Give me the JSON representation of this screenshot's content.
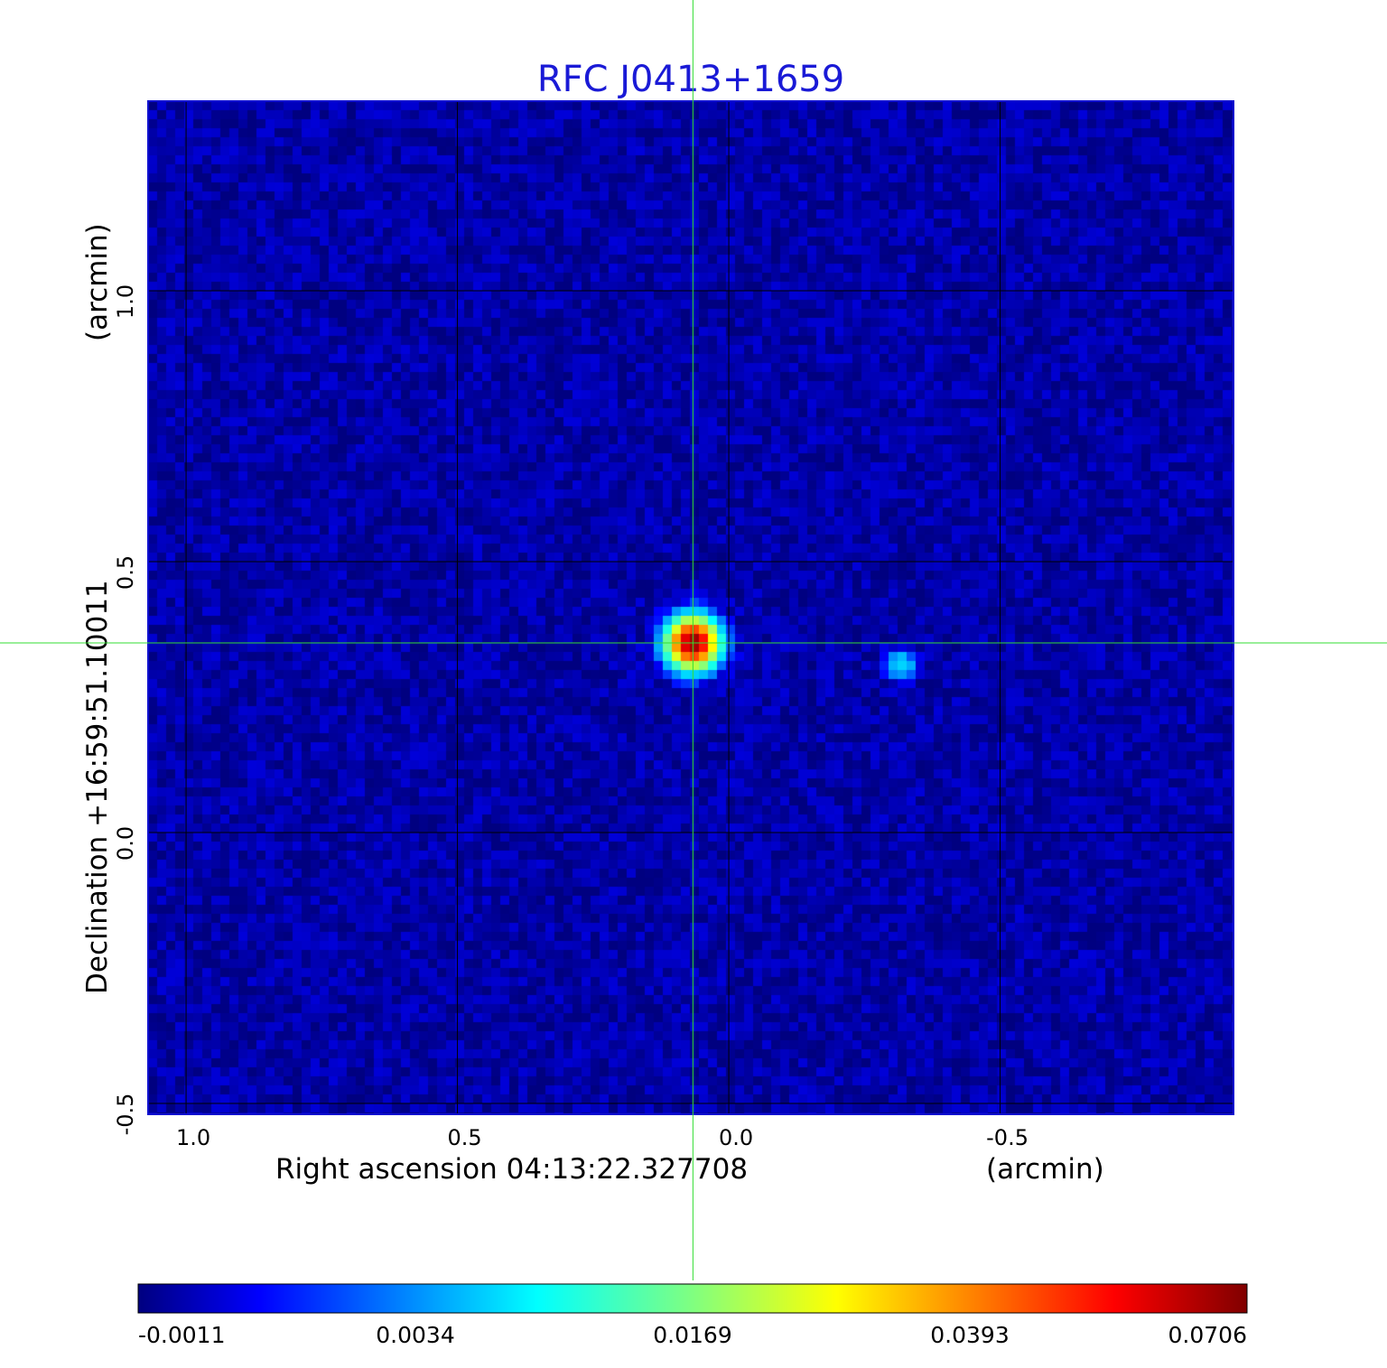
{
  "chart_data": {
    "type": "heatmap",
    "title": "RFC J0413+1659",
    "xlabel": "Right ascension  04:13:22.327708",
    "xunit": "(arcmin)",
    "ylabel": "Declination  +16:59:51.10011",
    "yunit": "(arcmin)",
    "x_ticks": [
      "1.0",
      "0.5",
      "0.0",
      "-0.5"
    ],
    "y_ticks": [
      "1.0",
      "0.5",
      "0.0",
      "-0.5"
    ],
    "x_tick_values": [
      1.0,
      0.5,
      0.0,
      -0.5
    ],
    "y_tick_values": [
      1.0,
      0.5,
      0.0,
      -0.5
    ],
    "xlim": [
      1.07,
      -0.93
    ],
    "ylim": [
      -0.52,
      1.35
    ],
    "grid": true,
    "crosshair": {
      "ra": 0.066,
      "dec": 0.35,
      "color": "#33dd33"
    },
    "colormap": "jet",
    "colorbar": {
      "orientation": "horizontal",
      "position": "bottom",
      "tick_labels": [
        "-0.0011",
        "0.0034",
        "0.0169",
        "0.0393",
        "0.0706"
      ]
    },
    "background_level": -0.0005,
    "sources": [
      {
        "ra": 0.066,
        "dec": 0.35,
        "peak": 0.0706,
        "sigma_arcmin": 0.028
      },
      {
        "ra": -0.318,
        "dec": 0.31,
        "peak": 0.0078,
        "sigma_arcmin": 0.018
      }
    ]
  }
}
